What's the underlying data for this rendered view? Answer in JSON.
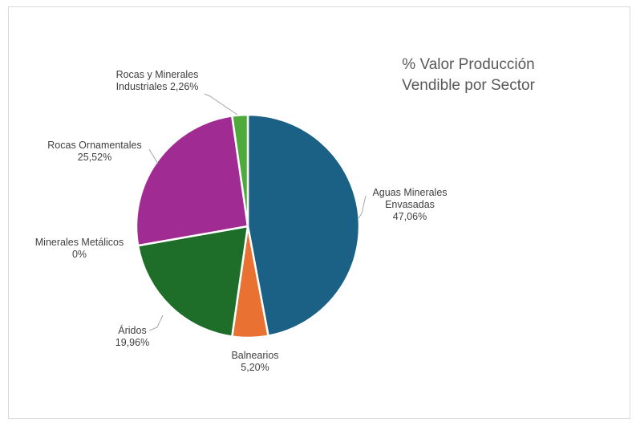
{
  "chart_data": {
    "type": "pie",
    "title_lines": [
      "%  Valor Producción",
      "Vendible por Sector"
    ],
    "categories": [
      "Aguas Minerales Envasadas",
      "Balnearios",
      "Áridos",
      "Minerales Metálicos",
      "Rocas Ornamentales",
      "Rocas y Minerales Industriales"
    ],
    "values": [
      47.06,
      5.2,
      19.96,
      0,
      25.52,
      2.26
    ],
    "colors": [
      "#1a6185",
      "#e97132",
      "#1e6e2a",
      "#196b24",
      "#a02b93",
      "#4eaa3a"
    ],
    "labels": [
      {
        "lines": [
          "Aguas Minerales",
          "Envasadas",
          "47,06%"
        ]
      },
      {
        "lines": [
          "Balnearios",
          "5,20%"
        ]
      },
      {
        "lines": [
          "Áridos",
          "19,96%"
        ]
      },
      {
        "lines": [
          "Minerales Metálicos",
          "0%"
        ]
      },
      {
        "lines": [
          "Rocas Ornamentales",
          "25,52%"
        ]
      },
      {
        "lines": [
          "Rocas y Minerales",
          "Industriales 2,26%"
        ]
      }
    ],
    "legend": "none",
    "start": "12 o'clock, clockwise"
  }
}
